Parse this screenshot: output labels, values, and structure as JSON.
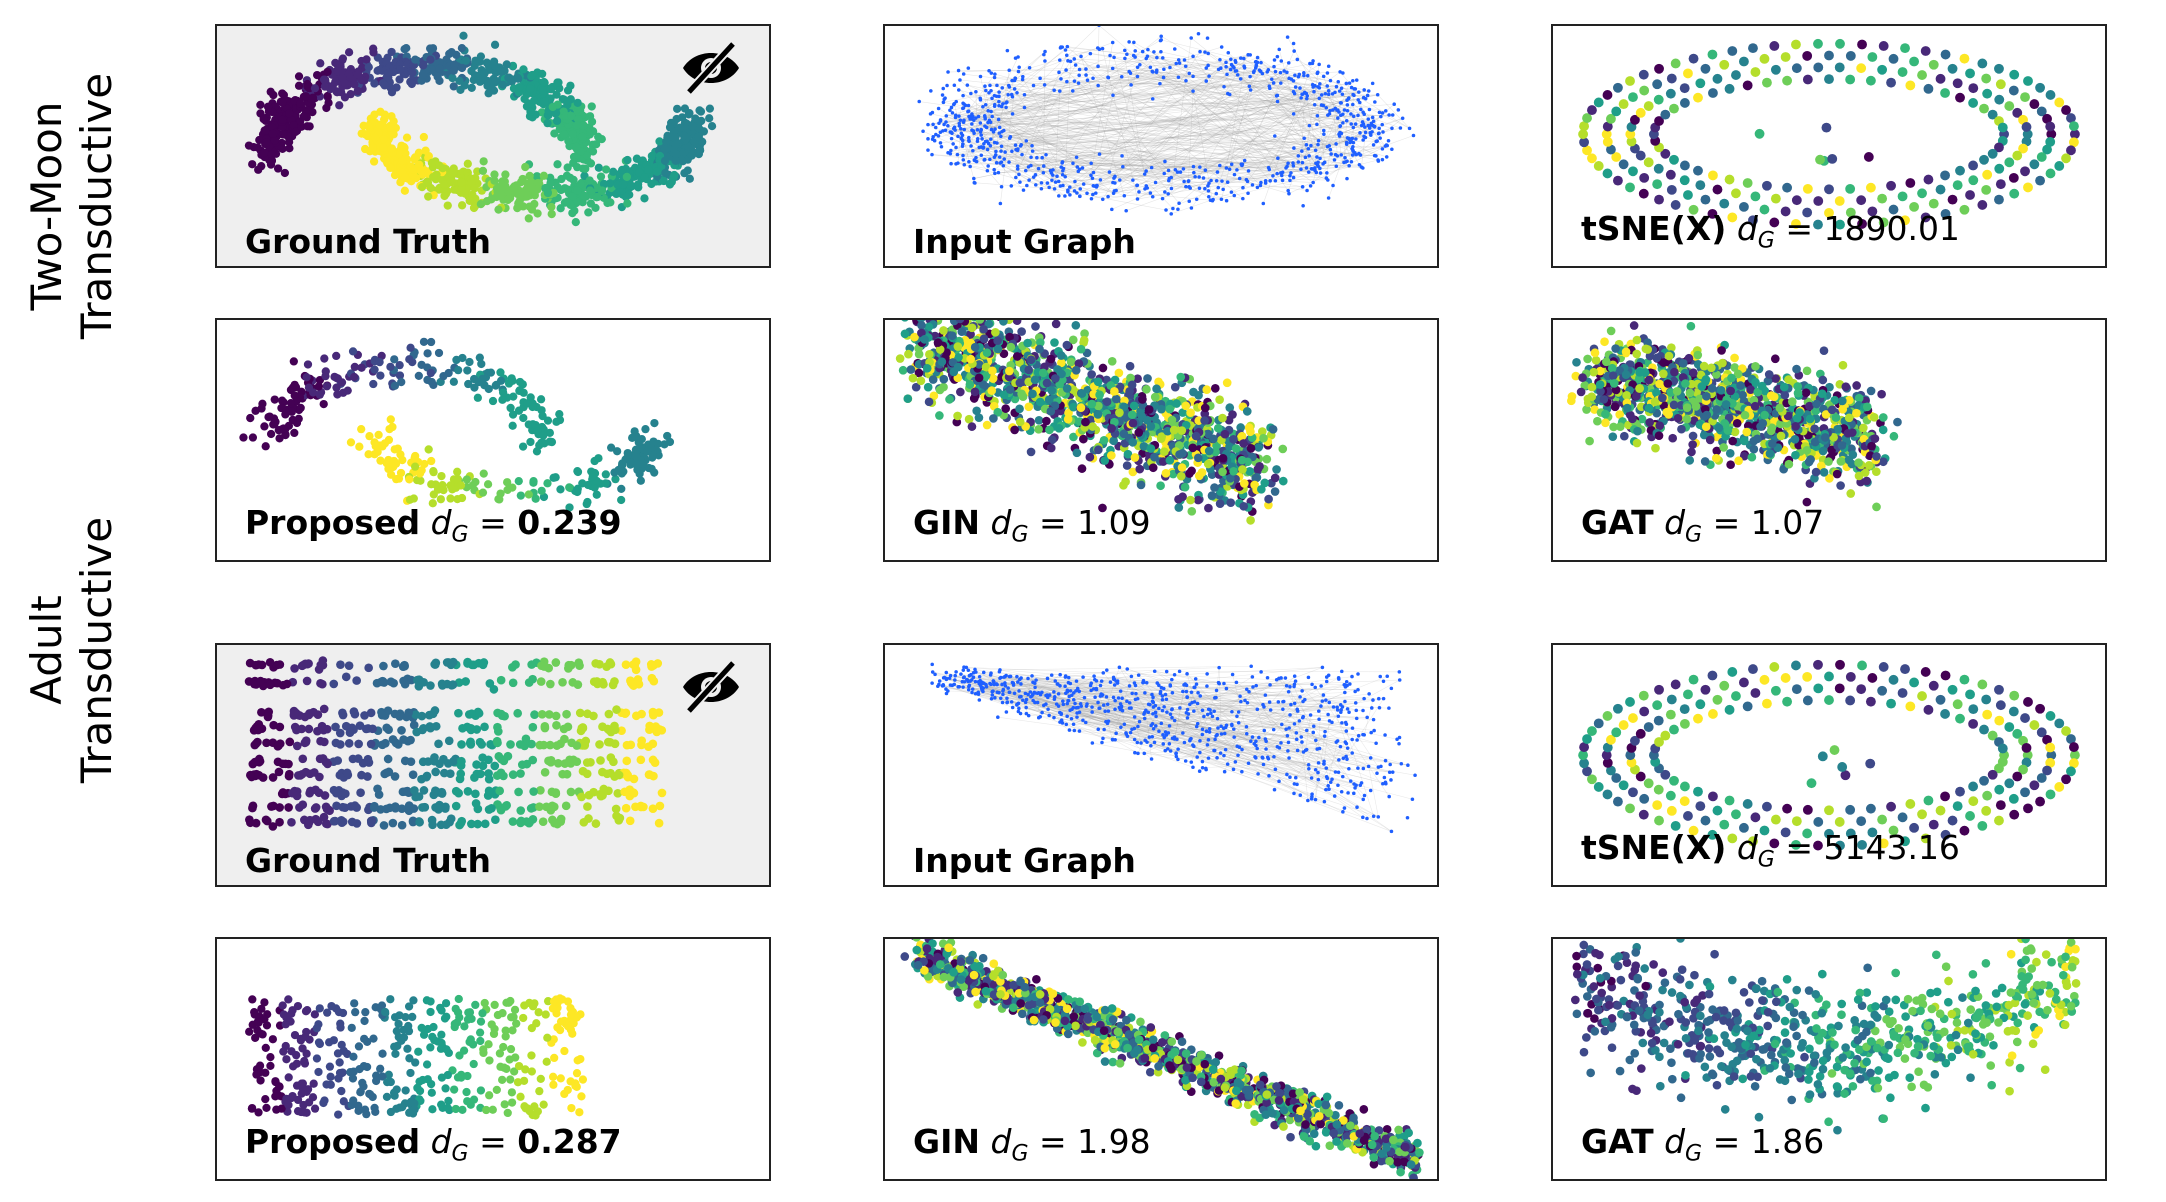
{
  "rows": [
    {
      "label_line1": "Two-Moon",
      "label_line2": "Transductive"
    },
    {
      "label_line1": "Adult",
      "label_line2": "Transductive"
    }
  ],
  "panels": {
    "tm_gt": {
      "method": "Ground Truth",
      "icon": "eye-slash-icon"
    },
    "tm_ig": {
      "method": "Input Graph"
    },
    "tm_tsne": {
      "method": "tSNE(X)",
      "metric": "d",
      "metric_sub": "G",
      "eq": " = ",
      "value": "1890.01"
    },
    "tm_prop": {
      "method": "Proposed",
      "metric": "d",
      "metric_sub": "G",
      "eq": " = ",
      "value": "0.239"
    },
    "tm_gin": {
      "method": "GIN",
      "metric": "d",
      "metric_sub": "G",
      "eq": " = ",
      "value": "1.09"
    },
    "tm_gat": {
      "method": "GAT",
      "metric": "d",
      "metric_sub": "G",
      "eq": " = ",
      "value": "1.07"
    },
    "ad_gt": {
      "method": "Ground Truth",
      "icon": "eye-slash-icon"
    },
    "ad_ig": {
      "method": "Input Graph"
    },
    "ad_tsne": {
      "method": "tSNE(X)",
      "metric": "d",
      "metric_sub": "G",
      "eq": " = ",
      "value": "5143.16"
    },
    "ad_prop": {
      "method": "Proposed",
      "metric": "d",
      "metric_sub": "G",
      "eq": " = ",
      "value": "0.287"
    },
    "ad_gin": {
      "method": "GIN",
      "metric": "d",
      "metric_sub": "G",
      "eq": " = ",
      "value": "1.98"
    },
    "ad_gat": {
      "method": "GAT",
      "metric": "d",
      "metric_sub": "G",
      "eq": " = ",
      "value": "1.86"
    }
  },
  "colors": {
    "viridis": [
      "#440154",
      "#482878",
      "#3e4989",
      "#31688e",
      "#26828e",
      "#1f9e89",
      "#35b779",
      "#6ece58",
      "#b5de2b",
      "#fde725"
    ],
    "graph_node": "#1f5fff",
    "graph_edge": "#9a9a9a",
    "gt_background": "#efefef"
  }
}
